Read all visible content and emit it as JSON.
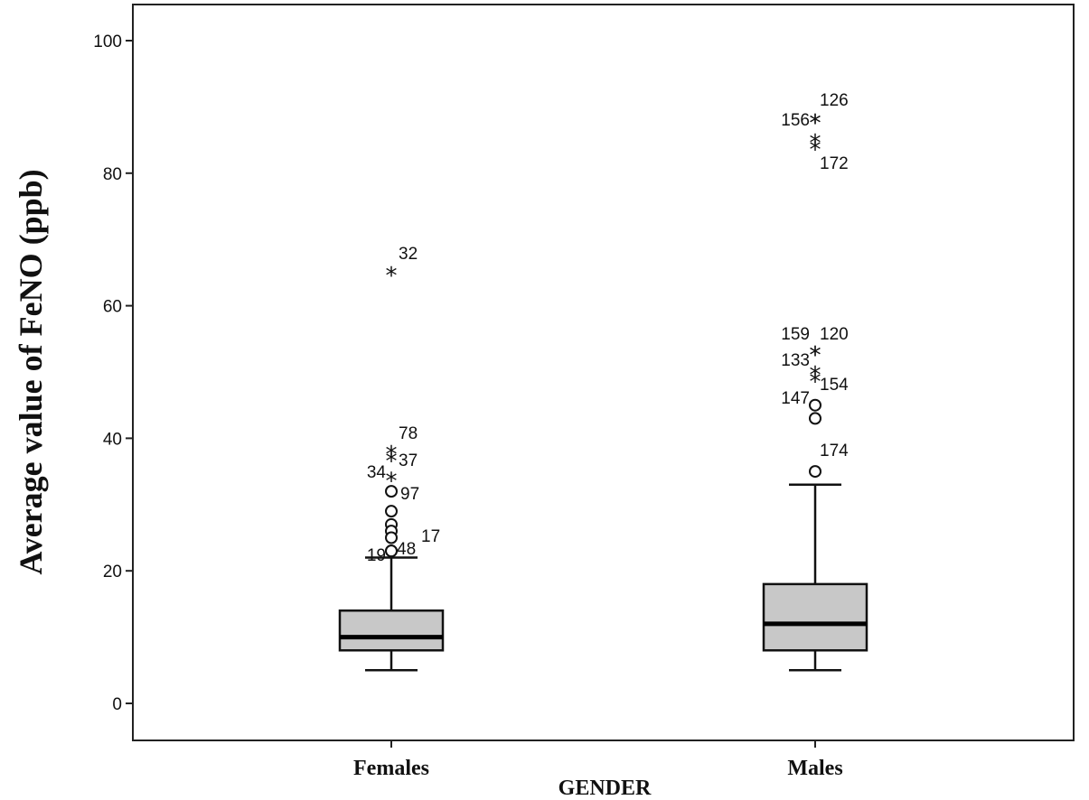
{
  "chart_data": {
    "type": "boxplot",
    "title": "",
    "xlabel": "GENDER",
    "ylabel": "Average value of FeNO (ppb)",
    "ylim": [
      -5,
      105
    ],
    "yticks": [
      0,
      20,
      40,
      60,
      80,
      100
    ],
    "grid": false,
    "categories": [
      "Females",
      "Males"
    ],
    "box_color": "#c8c8c8",
    "boxes": [
      {
        "category": "Females",
        "whisker_low": 5,
        "q1": 8,
        "median": 10,
        "q3": 14,
        "whisker_high": 22,
        "outliers": [
          {
            "value": 65,
            "label": "32",
            "kind": "extreme"
          },
          {
            "value": 38,
            "label": "78",
            "kind": "extreme"
          },
          {
            "value": 37,
            "label": "37",
            "kind": "extreme"
          },
          {
            "value": 34,
            "label": "34",
            "kind": "extreme"
          },
          {
            "value": 32,
            "label": "97",
            "kind": "mild"
          },
          {
            "value": 29,
            "label": "",
            "kind": "mild"
          },
          {
            "value": 27,
            "label": "",
            "kind": "mild"
          },
          {
            "value": 26,
            "label": "",
            "kind": "mild"
          },
          {
            "value": 25,
            "label": "17",
            "kind": "mild"
          },
          {
            "value": 23,
            "label": "48",
            "kind": "mild"
          },
          {
            "value": 23,
            "label": "19",
            "kind": "mild"
          }
        ]
      },
      {
        "category": "Males",
        "whisker_low": 5,
        "q1": 8,
        "median": 12,
        "q3": 18,
        "whisker_high": 33,
        "outliers": [
          {
            "value": 88,
            "label": "126",
            "kind": "extreme"
          },
          {
            "value": 88,
            "label": "156",
            "kind": "extreme"
          },
          {
            "value": 85,
            "label": "",
            "kind": "extreme"
          },
          {
            "value": 84,
            "label": "172",
            "kind": "extreme"
          },
          {
            "value": 53,
            "label": "120",
            "kind": "extreme"
          },
          {
            "value": 53,
            "label": "159",
            "kind": "extreme"
          },
          {
            "value": 50,
            "label": "133",
            "kind": "extreme"
          },
          {
            "value": 49,
            "label": "154",
            "kind": "extreme"
          },
          {
            "value": 45,
            "label": "147",
            "kind": "mild"
          },
          {
            "value": 43,
            "label": "",
            "kind": "mild"
          },
          {
            "value": 35,
            "label": "174",
            "kind": "mild"
          }
        ]
      }
    ]
  }
}
